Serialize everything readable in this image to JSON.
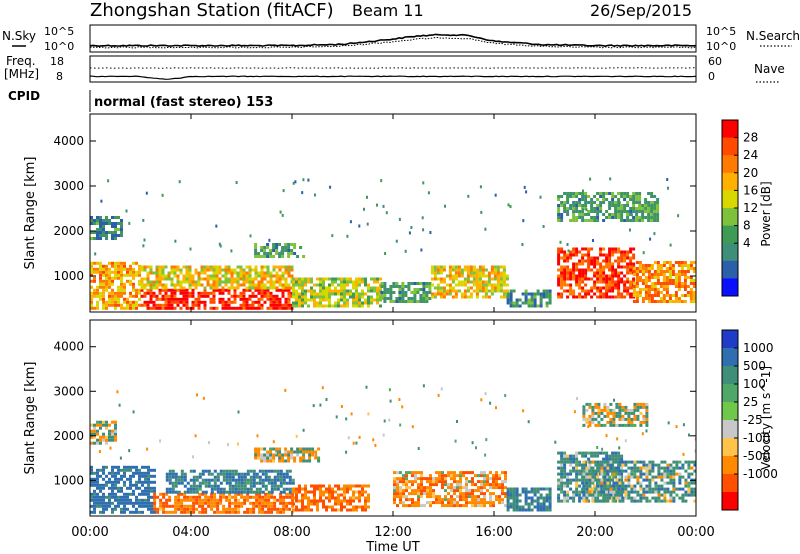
{
  "header": {
    "station": "Zhongshan Station (fitACF)",
    "beam": "Beam 11",
    "date": "26/Sep/2015"
  },
  "panels": {
    "nsky": {
      "label": "N.Sky",
      "left_ticks": [
        "10^5",
        "10^0"
      ],
      "right_ticks": [
        "10^5",
        "10^0"
      ],
      "right_label": "N.Search"
    },
    "freq": {
      "label_line1": "Freq.",
      "label_line2": "[MHz]",
      "left_ticks": [
        "18",
        "8"
      ],
      "right_ticks": [
        "60",
        "0"
      ],
      "right_label": "Nave"
    },
    "cpid": {
      "label": "CPID",
      "value": "normal (fast stereo) 153"
    }
  },
  "power_panel": {
    "ylabel": "Slant Range [km]",
    "yticks": [
      "4000",
      "3000",
      "2000",
      "1000"
    ],
    "colorbar_label": "Power [dB]",
    "colorbar_ticks": [
      "28",
      "24",
      "20",
      "16",
      "12",
      "8",
      "4"
    ],
    "colors": [
      "#ff0000",
      "#ff4a00",
      "#ff7a00",
      "#ffb000",
      "#d8d800",
      "#7ec23c",
      "#3f9a55",
      "#3f8f78",
      "#2c5faa",
      "#0a10ff"
    ]
  },
  "velocity_panel": {
    "ylabel": "Slant Range [km]",
    "yticks": [
      "4000",
      "3000",
      "2000",
      "1000"
    ],
    "colorbar_label": "Velocity [m s^-1]",
    "colorbar_ticks": [
      "1000",
      "500",
      "100",
      "25",
      "-25",
      "-100",
      "-500",
      "-1000"
    ],
    "colors": [
      "#1f3cc8",
      "#2f6fb0",
      "#3f8f78",
      "#4fa868",
      "#70c84a",
      "#c8c8c8",
      "#ffc24a",
      "#ff8a00",
      "#ff5000",
      "#ff0000"
    ]
  },
  "xaxis": {
    "ticks": [
      "00:00",
      "04:00",
      "08:00",
      "12:00",
      "16:00",
      "20:00",
      "00:00"
    ],
    "label": "Time UT"
  },
  "chart_data": [
    {
      "type": "line",
      "title": "N.Sky / N.Search",
      "x_units": "hours UT",
      "x": [
        0,
        2,
        4,
        6,
        8,
        10,
        12,
        13,
        14,
        15,
        16,
        18,
        20,
        22,
        24
      ],
      "series": [
        {
          "name": "N.Sky",
          "values_log10": [
            1.0,
            1.0,
            1.0,
            1.0,
            1.0,
            1.3,
            2.5,
            3.2,
            3.5,
            3.3,
            2.0,
            1.2,
            1.0,
            1.0,
            1.0
          ]
        },
        {
          "name": "N.Search",
          "values_log10": [
            0.6,
            0.6,
            0.6,
            0.6,
            0.6,
            0.9,
            1.9,
            2.5,
            2.8,
            2.6,
            1.5,
            0.8,
            0.6,
            0.6,
            0.6
          ]
        }
      ],
      "ylim_log10": [
        0,
        5
      ]
    },
    {
      "type": "line",
      "title": "Freq. / Nave",
      "x_units": "hours UT",
      "x": [
        0,
        2,
        2.5,
        3,
        3.5,
        4,
        6,
        12,
        18,
        24
      ],
      "series": [
        {
          "name": "Freq. [MHz]",
          "values": [
            10,
            10,
            9.0,
            8.4,
            9.0,
            10,
            10,
            10,
            10,
            10
          ]
        },
        {
          "name": "Nave",
          "values": [
            40,
            40,
            40,
            40,
            40,
            40,
            40,
            40,
            40,
            40
          ]
        }
      ]
    },
    {
      "type": "heatmap",
      "title": "Power [dB]",
      "x_units": "hours UT",
      "xlim": [
        0,
        24
      ],
      "ylim": [
        200,
        4600
      ],
      "regions": [
        {
          "t0": 0.0,
          "t1": 2.0,
          "r0": 250,
          "r1": 1300,
          "value": 20
        },
        {
          "t0": 2.0,
          "t1": 8.0,
          "r0": 250,
          "r1": 700,
          "value": 28
        },
        {
          "t0": 2.0,
          "t1": 8.0,
          "r0": 700,
          "r1": 1200,
          "value": 18
        },
        {
          "t0": 8.0,
          "t1": 11.5,
          "r0": 300,
          "r1": 900,
          "value": 16
        },
        {
          "t0": 11.5,
          "t1": 13.5,
          "r0": 400,
          "r1": 800,
          "value": 10
        },
        {
          "t0": 13.5,
          "t1": 16.5,
          "r0": 500,
          "r1": 1200,
          "value": 18
        },
        {
          "t0": 16.5,
          "t1": 18.2,
          "r0": 300,
          "r1": 700,
          "value": 8
        },
        {
          "t0": 18.5,
          "t1": 21.5,
          "r0": 500,
          "r1": 1600,
          "value": 26
        },
        {
          "t0": 21.5,
          "t1": 24.0,
          "r0": 400,
          "r1": 1300,
          "value": 22
        },
        {
          "t0": 18.5,
          "t1": 22.5,
          "r0": 2200,
          "r1": 2800,
          "value": 10
        },
        {
          "t0": 6.5,
          "t1": 8.5,
          "r0": 1400,
          "r1": 1700,
          "value": 10
        },
        {
          "t0": 0.0,
          "t1": 1.2,
          "r0": 1800,
          "r1": 2300,
          "value": 8
        }
      ],
      "colorbar_range": [
        0,
        30
      ]
    },
    {
      "type": "heatmap",
      "title": "Velocity [m s^-1]",
      "x_units": "hours UT",
      "xlim": [
        0,
        24
      ],
      "ylim": [
        200,
        4600
      ],
      "regions": [
        {
          "t0": 0.0,
          "t1": 2.5,
          "r0": 250,
          "r1": 1300,
          "value": 500
        },
        {
          "t0": 0.0,
          "t1": 1.0,
          "r0": 1800,
          "r1": 2300,
          "value": 0
        },
        {
          "t0": 2.5,
          "t1": 8.0,
          "r0": 250,
          "r1": 700,
          "value": -300
        },
        {
          "t0": 3.0,
          "t1": 8.0,
          "r0": 700,
          "r1": 1200,
          "value": 300
        },
        {
          "t0": 8.0,
          "t1": 11.0,
          "r0": 300,
          "r1": 900,
          "value": -300
        },
        {
          "t0": 6.5,
          "t1": 9.0,
          "r0": 1400,
          "r1": 1700,
          "value": 0
        },
        {
          "t0": 12.0,
          "t1": 16.5,
          "r0": 400,
          "r1": 1200,
          "value": -200
        },
        {
          "t0": 16.5,
          "t1": 18.2,
          "r0": 300,
          "r1": 800,
          "value": 300
        },
        {
          "t0": 18.5,
          "t1": 21.0,
          "r0": 500,
          "r1": 1600,
          "value": 200
        },
        {
          "t0": 19.5,
          "t1": 24.0,
          "r0": 500,
          "r1": 1400,
          "value": 150
        },
        {
          "t0": 19.5,
          "t1": 22.0,
          "r0": 2200,
          "r1": 2700,
          "value": 0
        }
      ],
      "colorbar_range": [
        -1000,
        1000
      ]
    }
  ]
}
